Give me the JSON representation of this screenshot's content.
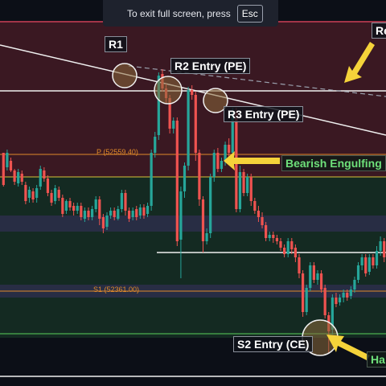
{
  "toast": {
    "text": "To exit full screen, press",
    "key": "Esc"
  },
  "annotations": {
    "r1": "R1",
    "r2": "R2 Entry (PE)",
    "r3": "R3 Entry (PE)",
    "s2": "S2 Entry (CE)",
    "engulf": "Bearish Engulfing",
    "re_fragment": "Re",
    "ha_fragment": "Ha"
  },
  "pivots": {
    "p": "P (52559.40)",
    "s1": "S1 (52361.00)"
  },
  "colors": {
    "up": "#26a69a",
    "down": "#ef5350",
    "resistance_zone": "#3a1822",
    "support_zone": "#142a22",
    "arrow": "#f5d33a"
  },
  "chart_data": {
    "type": "candlestick",
    "candles": [
      [
        230,
        190,
        192,
        232,
        "d"
      ],
      [
        208,
        190,
        186,
        212,
        "u"
      ],
      [
        200,
        212,
        196,
        214,
        "d"
      ],
      [
        212,
        226,
        210,
        230,
        "d"
      ],
      [
        228,
        214,
        210,
        232,
        "u"
      ],
      [
        216,
        226,
        212,
        230,
        "d"
      ],
      [
        230,
        250,
        226,
        254,
        "d"
      ],
      [
        246,
        236,
        232,
        252,
        "u"
      ],
      [
        238,
        248,
        234,
        252,
        "d"
      ],
      [
        246,
        234,
        230,
        252,
        "u"
      ],
      [
        232,
        210,
        206,
        236,
        "u"
      ],
      [
        212,
        222,
        208,
        226,
        "d"
      ],
      [
        222,
        240,
        218,
        244,
        "d"
      ],
      [
        240,
        252,
        236,
        256,
        "d"
      ],
      [
        250,
        234,
        230,
        254,
        "u"
      ],
      [
        236,
        246,
        232,
        250,
        "d"
      ],
      [
        246,
        266,
        242,
        270,
        "d"
      ],
      [
        262,
        250,
        248,
        266,
        "u"
      ],
      [
        250,
        258,
        246,
        262,
        "d"
      ],
      [
        256,
        262,
        252,
        268,
        "d"
      ],
      [
        262,
        256,
        252,
        266,
        "u"
      ],
      [
        256,
        270,
        252,
        274,
        "d"
      ],
      [
        272,
        262,
        258,
        276,
        "u"
      ],
      [
        262,
        270,
        258,
        274,
        "d"
      ],
      [
        270,
        260,
        256,
        274,
        "u"
      ],
      [
        260,
        248,
        244,
        264,
        "u"
      ],
      [
        248,
        272,
        244,
        280,
        "d"
      ],
      [
        270,
        284,
        266,
        290,
        "d"
      ],
      [
        282,
        268,
        264,
        286,
        "u"
      ],
      [
        268,
        262,
        258,
        272,
        "u"
      ],
      [
        262,
        270,
        258,
        274,
        "d"
      ],
      [
        272,
        260,
        256,
        274,
        "u"
      ],
      [
        260,
        240,
        236,
        264,
        "u"
      ],
      [
        240,
        262,
        236,
        268,
        "d"
      ],
      [
        262,
        272,
        258,
        276,
        "d"
      ],
      [
        270,
        262,
        258,
        274,
        "u"
      ],
      [
        260,
        270,
        256,
        274,
        "d"
      ],
      [
        268,
        258,
        254,
        272,
        "u"
      ],
      [
        258,
        268,
        254,
        272,
        "d"
      ],
      [
        266,
        256,
        252,
        270,
        "u"
      ],
      [
        256,
        190,
        186,
        262,
        "u"
      ],
      [
        190,
        170,
        164,
        196,
        "u"
      ],
      [
        168,
        94,
        90,
        174,
        "u"
      ],
      [
        92,
        110,
        86,
        114,
        "d"
      ],
      [
        110,
        122,
        104,
        128,
        "d"
      ],
      [
        122,
        160,
        118,
        166,
        "d"
      ],
      [
        160,
        150,
        146,
        166,
        "u"
      ],
      [
        150,
        300,
        146,
        306,
        "d"
      ],
      [
        298,
        238,
        232,
        346,
        "u"
      ],
      [
        238,
        206,
        202,
        246,
        "u"
      ],
      [
        206,
        112,
        108,
        212,
        "u"
      ],
      [
        112,
        118,
        106,
        124,
        "d"
      ],
      [
        118,
        190,
        114,
        200,
        "d"
      ],
      [
        190,
        248,
        186,
        256,
        "d"
      ],
      [
        248,
        300,
        244,
        314,
        "d"
      ],
      [
        300,
        290,
        284,
        304,
        "u"
      ],
      [
        290,
        220,
        216,
        296,
        "u"
      ],
      [
        220,
        190,
        186,
        226,
        "u"
      ],
      [
        190,
        210,
        184,
        214,
        "d"
      ],
      [
        210,
        200,
        196,
        214,
        "u"
      ],
      [
        200,
        180,
        176,
        206,
        "u"
      ],
      [
        180,
        190,
        172,
        196,
        "d"
      ],
      [
        190,
        140,
        134,
        196,
        "u"
      ],
      [
        140,
        260,
        134,
        264,
        "d"
      ],
      [
        260,
        214,
        206,
        264,
        "u"
      ],
      [
        214,
        240,
        210,
        244,
        "d"
      ],
      [
        240,
        220,
        216,
        244,
        "u"
      ],
      [
        220,
        250,
        216,
        256,
        "d"
      ],
      [
        250,
        262,
        246,
        266,
        "d"
      ],
      [
        262,
        270,
        256,
        276,
        "d"
      ],
      [
        270,
        280,
        264,
        284,
        "d"
      ],
      [
        280,
        296,
        276,
        300,
        "d"
      ],
      [
        296,
        292,
        288,
        300,
        "u"
      ],
      [
        292,
        296,
        288,
        302,
        "d"
      ],
      [
        296,
        300,
        292,
        304,
        "d"
      ],
      [
        300,
        308,
        296,
        312,
        "d"
      ],
      [
        308,
        316,
        304,
        320,
        "d"
      ],
      [
        316,
        300,
        296,
        320,
        "u"
      ],
      [
        300,
        310,
        296,
        316,
        "d"
      ],
      [
        308,
        320,
        304,
        326,
        "d"
      ],
      [
        320,
        340,
        316,
        346,
        "d"
      ],
      [
        340,
        388,
        336,
        394,
        "d"
      ],
      [
        388,
        358,
        354,
        392,
        "u"
      ],
      [
        358,
        330,
        326,
        362,
        "u"
      ],
      [
        330,
        348,
        326,
        352,
        "d"
      ],
      [
        348,
        340,
        336,
        354,
        "u"
      ],
      [
        340,
        360,
        336,
        364,
        "d"
      ],
      [
        358,
        392,
        354,
        396,
        "d"
      ],
      [
        392,
        412,
        388,
        440,
        "d"
      ],
      [
        410,
        370,
        366,
        416,
        "u"
      ],
      [
        370,
        378,
        364,
        382,
        "d"
      ],
      [
        376,
        370,
        366,
        380,
        "u"
      ],
      [
        370,
        364,
        360,
        376,
        "u"
      ],
      [
        364,
        370,
        360,
        374,
        "d"
      ],
      [
        368,
        360,
        356,
        372,
        "u"
      ],
      [
        360,
        348,
        344,
        364,
        "u"
      ],
      [
        348,
        330,
        326,
        352,
        "u"
      ],
      [
        330,
        320,
        316,
        336,
        "u"
      ],
      [
        320,
        340,
        316,
        344,
        "d"
      ],
      [
        338,
        320,
        316,
        342,
        "u"
      ],
      [
        320,
        330,
        316,
        334,
        "d"
      ],
      [
        330,
        312,
        306,
        334,
        "u"
      ],
      [
        312,
        300,
        294,
        318,
        "u"
      ],
      [
        300,
        320,
        296,
        326,
        "d"
      ]
    ]
  }
}
